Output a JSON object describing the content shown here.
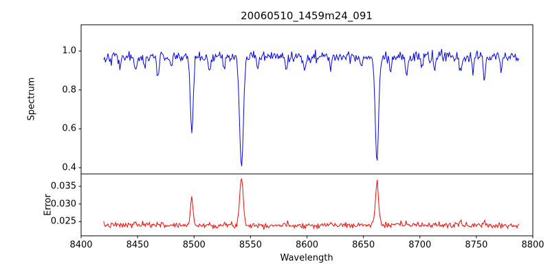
{
  "title": "20060510_1459m24_091",
  "chart_data": {
    "type": "line",
    "title": "20060510_1459m24_091",
    "xlabel": "Wavelength",
    "xlim": [
      8400,
      8800
    ],
    "x_ticks": [
      8400,
      8450,
      8500,
      8550,
      8600,
      8650,
      8700,
      8750,
      8800
    ],
    "x_data_range": [
      8420,
      8788
    ],
    "x_step": 0.75,
    "grid": false,
    "legend": "none",
    "panels": [
      {
        "name": "spectrum",
        "ylabel": "Spectrum",
        "color": "#0000ee",
        "ylim": [
          0.368,
          1.135
        ],
        "y_ticks": [
          0.4,
          0.6,
          0.8,
          1.0
        ],
        "tick_decimals": 1,
        "model": {
          "kind": "noisy-continuum-with-absorption",
          "continuum": 0.97,
          "noise_std": 0.014,
          "seed": 42,
          "absorption_lines": [
            {
              "center": 8434,
              "depth": 0.06,
              "sigma": 0.8
            },
            {
              "center": 8448,
              "depth": 0.09,
              "sigma": 0.9
            },
            {
              "center": 8456,
              "depth": 0.05,
              "sigma": 0.8
            },
            {
              "center": 8468,
              "depth": 0.12,
              "sigma": 0.9
            },
            {
              "center": 8480,
              "depth": 0.05,
              "sigma": 0.8
            },
            {
              "center": 8498,
              "depth": 0.4,
              "sigma": 1.3,
              "observed_min": 0.59
            },
            {
              "center": 8514,
              "depth": 0.1,
              "sigma": 0.9
            },
            {
              "center": 8527,
              "depth": 0.06,
              "sigma": 0.8
            },
            {
              "center": 8542,
              "depth": 0.585,
              "sigma": 1.7,
              "observed_min": 0.4
            },
            {
              "center": 8556,
              "depth": 0.05,
              "sigma": 0.8
            },
            {
              "center": 8582,
              "depth": 0.07,
              "sigma": 0.9
            },
            {
              "center": 8598,
              "depth": 0.06,
              "sigma": 0.8
            },
            {
              "center": 8621,
              "depth": 0.07,
              "sigma": 0.8
            },
            {
              "center": 8648,
              "depth": 0.05,
              "sigma": 0.8
            },
            {
              "center": 8662,
              "depth": 0.545,
              "sigma": 1.5,
              "observed_min": 0.44
            },
            {
              "center": 8674,
              "depth": 0.07,
              "sigma": 0.8
            },
            {
              "center": 8688,
              "depth": 0.11,
              "sigma": 0.9
            },
            {
              "center": 8702,
              "depth": 0.06,
              "sigma": 0.8
            },
            {
              "center": 8713,
              "depth": 0.08,
              "sigma": 0.8
            },
            {
              "center": 8736,
              "depth": 0.09,
              "sigma": 0.9
            },
            {
              "center": 8747,
              "depth": 0.07,
              "sigma": 0.8
            },
            {
              "center": 8757,
              "depth": 0.12,
              "sigma": 0.9
            },
            {
              "center": 8772,
              "depth": 0.07,
              "sigma": 0.8
            }
          ]
        }
      },
      {
        "name": "error",
        "ylabel": "Error",
        "color": "#ff0000",
        "ylim": [
          0.021,
          0.0385
        ],
        "y_ticks": [
          0.025,
          0.03,
          0.035
        ],
        "tick_decimals": 3,
        "model": {
          "kind": "noisy-baseline-with-peaks",
          "baseline": 0.024,
          "noise_std": 0.0004,
          "seed": 7,
          "emission_peaks": [
            {
              "center": 8448,
              "amp": 0.0008,
              "sigma": 0.9
            },
            {
              "center": 8468,
              "amp": 0.0009,
              "sigma": 0.9
            },
            {
              "center": 8498,
              "amp": 0.0075,
              "sigma": 1.2,
              "observed_max": 0.0315
            },
            {
              "center": 8542,
              "amp": 0.0133,
              "sigma": 1.6,
              "observed_max": 0.0372
            },
            {
              "center": 8621,
              "amp": 0.0006,
              "sigma": 0.8
            },
            {
              "center": 8662,
              "amp": 0.0125,
              "sigma": 1.4,
              "observed_max": 0.0365
            },
            {
              "center": 8688,
              "amp": 0.0008,
              "sigma": 0.9
            },
            {
              "center": 8713,
              "amp": 0.0006,
              "sigma": 0.8
            },
            {
              "center": 8736,
              "amp": 0.0008,
              "sigma": 0.9
            },
            {
              "center": 8757,
              "amp": 0.0012,
              "sigma": 0.9
            }
          ]
        }
      }
    ]
  }
}
